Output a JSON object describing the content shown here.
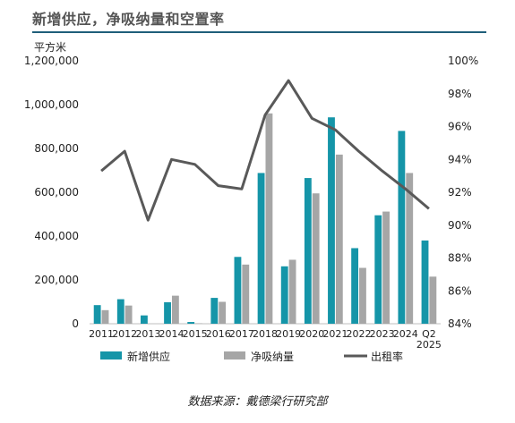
{
  "title": "新增供应，净吸纳量和空置率",
  "source": "数据来源：戴德梁行研究部",
  "colors": {
    "supply": "#1595a8",
    "absorption": "#a6a6a6",
    "occupancy": "#595959"
  },
  "chart_data": {
    "type": "bar",
    "title": "新增供应，净吸纳量和空置率",
    "ylabel": "平方米",
    "ylim": [
      0,
      1200000
    ],
    "y_ticks": [
      "0",
      "200,000",
      "400,000",
      "600,000",
      "800,000",
      "1,000,000",
      "1,200,000"
    ],
    "y2lim": [
      84,
      100
    ],
    "y2_ticks": [
      "84%",
      "86%",
      "88%",
      "90%",
      "92%",
      "94%",
      "96%",
      "98%",
      "100%"
    ],
    "categories": [
      "2011",
      "2012",
      "2013",
      "2014",
      "2015",
      "2016",
      "2017",
      "2018",
      "2019",
      "2020",
      "2021",
      "2022",
      "2023",
      "2024",
      "Q2 2025"
    ],
    "series": [
      {
        "name": "新增供应",
        "type": "bar",
        "axis": "left",
        "values": [
          85000,
          112000,
          38000,
          98000,
          8000,
          118000,
          305000,
          688000,
          262000,
          665000,
          942000,
          345000,
          495000,
          880000,
          380000
        ]
      },
      {
        "name": "净吸纳量",
        "type": "bar",
        "axis": "left",
        "values": [
          62000,
          83000,
          0,
          128000,
          2000,
          100000,
          270000,
          960000,
          292000,
          595000,
          772000,
          255000,
          512000,
          688000,
          215000
        ]
      },
      {
        "name": "出租率",
        "type": "line",
        "axis": "right",
        "values": [
          93.3,
          94.5,
          90.3,
          94.0,
          93.7,
          92.4,
          92.2,
          96.7,
          98.8,
          96.5,
          95.8,
          94.5,
          93.3,
          92.2,
          91.0
        ]
      }
    ],
    "legend": "bottom",
    "grid": false
  }
}
